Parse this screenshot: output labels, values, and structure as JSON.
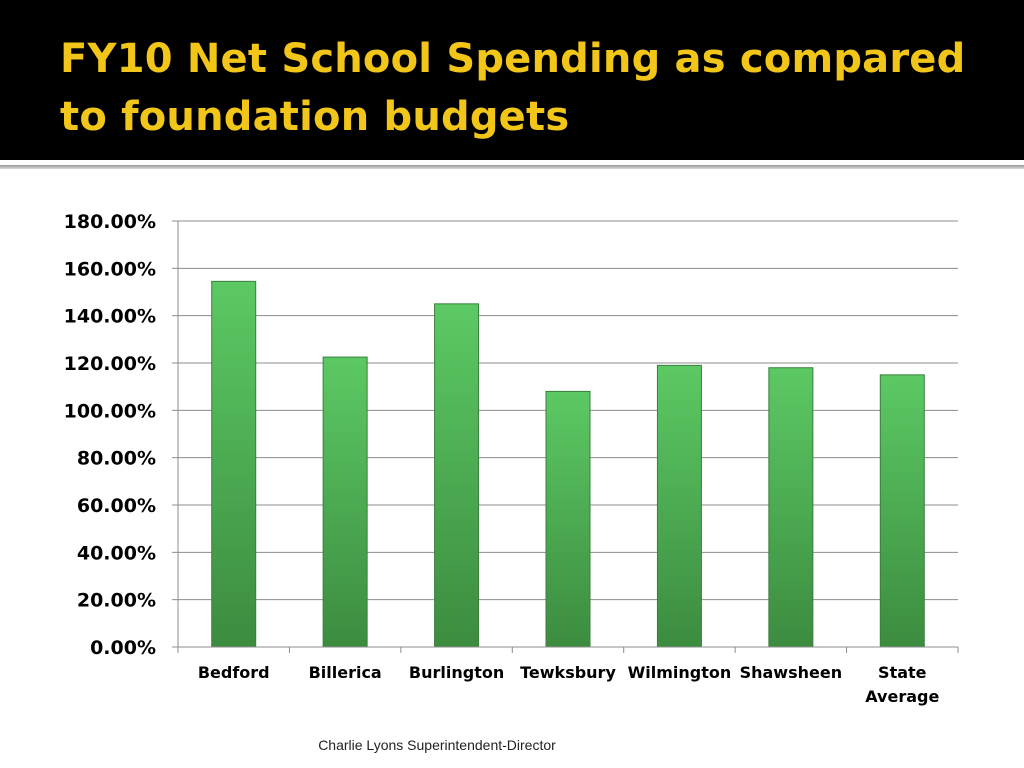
{
  "slide": {
    "title": "FY10 Net School Spending as compared to foundation budgets",
    "footer": "Charlie Lyons Superintendent-Director"
  },
  "colors": {
    "header_bg": "#000000",
    "title": "#f2c618",
    "bar_top": "#5cc964",
    "bar_bottom": "#3c8c3f",
    "gridline": "#8c8c8c"
  },
  "chart_data": {
    "type": "bar",
    "categories": [
      "Bedford",
      "Billerica",
      "Burlington",
      "Tewksbury",
      "Wilmington",
      "Shawsheen",
      "State Average"
    ],
    "values": [
      154.5,
      122.5,
      145.0,
      108.0,
      119.0,
      118.0,
      115.0
    ],
    "ylim": [
      0,
      180
    ],
    "ytick_values": [
      0,
      20,
      40,
      60,
      80,
      100,
      120,
      140,
      160,
      180
    ],
    "ytick_labels": [
      "0.00%",
      "20.00%",
      "40.00%",
      "60.00%",
      "80.00%",
      "100.00%",
      "120.00%",
      "140.00%",
      "160.00%",
      "180.00%"
    ],
    "grid": true,
    "legend": "none"
  }
}
